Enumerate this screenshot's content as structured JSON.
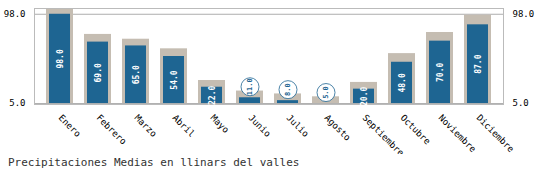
{
  "chart_data": {
    "type": "bar",
    "title": "Precipitaciones Medias en llinars del valles",
    "categories": [
      "Enero",
      "Febrero",
      "Marzo",
      "Abril",
      "Mayo",
      "Junio",
      "Julio",
      "Agosto",
      "Septiembre",
      "Octubre",
      "Noviembre",
      "Diciembre"
    ],
    "series": [
      {
        "color": "#c5bdb2",
        "values": [
          103,
          77,
          72,
          62,
          29,
          18,
          15,
          12,
          27,
          57,
          79,
          97
        ]
      },
      {
        "color": "#1e6592",
        "values": [
          98,
          69,
          65,
          54,
          22,
          11,
          8,
          5,
          20,
          48,
          70,
          87
        ],
        "value_labels": [
          "98.0",
          "69.0",
          "65.0",
          "54.0",
          "22.0",
          "11.0",
          "8.0",
          "5.0",
          "20.0",
          "48.0",
          "70.0",
          "87.0"
        ]
      }
    ],
    "ylim": [
      4,
      104
    ],
    "yticks": [
      {
        "value": 5,
        "label": "5.0"
      },
      {
        "value": 98,
        "label": "98.0"
      }
    ],
    "grid": true,
    "data_labels": true
  }
}
